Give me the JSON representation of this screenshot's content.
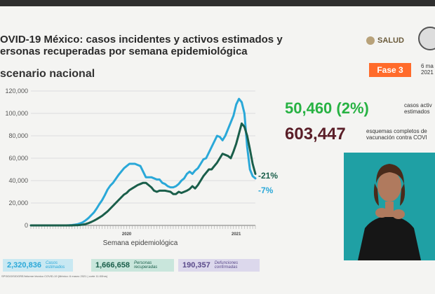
{
  "header": {
    "title_line1": "OVID-19 México: casos incidentes y activos estimados y",
    "title_line2": "ersonas recuperadas por semana epidemiológica",
    "subtitle": "scenario nacional",
    "brand": "SALUD",
    "phase": "Fase 3",
    "date_line1": "6 ma",
    "date_line2": "2021",
    "colors": {
      "phase_bg": "#ff6b2b",
      "active": "#27b243",
      "vaccine": "#5a1e28"
    }
  },
  "chart_data": {
    "type": "line",
    "xlabel": "Semana epidemiológica",
    "ylabel": "",
    "ylim": [
      0,
      120000
    ],
    "y_ticks": [
      "0",
      "20,000",
      "40,000",
      "60,000",
      "80,000",
      "100,000",
      "120,000"
    ],
    "year_labels": [
      "2020",
      "2021"
    ],
    "grid": true,
    "series": [
      {
        "name": "casos estimados",
        "color": "#2aa8d8",
        "values": [
          0,
          0,
          0,
          0,
          0,
          0,
          0,
          0,
          0,
          0,
          0,
          0,
          0,
          0,
          100,
          300,
          600,
          1000,
          1800,
          2800,
          4500,
          6500,
          9000,
          11500,
          15000,
          19000,
          22500,
          27000,
          32000,
          35500,
          38000,
          41500,
          45000,
          48000,
          51000,
          53000,
          55000,
          55000,
          55000,
          54000,
          53000,
          48000,
          43000,
          43000,
          43000,
          42000,
          41000,
          41000,
          38000,
          37000,
          35000,
          34000,
          34000,
          35000,
          37000,
          40000,
          42000,
          46000,
          48000,
          46000,
          49000,
          51000,
          55000,
          59000,
          60000,
          65000,
          70000,
          75000,
          80000,
          79000,
          76000,
          80000,
          86000,
          92000,
          98000,
          108000,
          113000,
          110000,
          100000,
          70000,
          50000,
          44000,
          42000
        ]
      },
      {
        "name": "personas recuperadas",
        "color": "#1a5e4a",
        "values": [
          0,
          0,
          0,
          0,
          0,
          0,
          0,
          0,
          0,
          0,
          0,
          0,
          0,
          0,
          0,
          0,
          100,
          200,
          400,
          700,
          1200,
          2000,
          3000,
          4200,
          5500,
          7000,
          8500,
          10500,
          12500,
          15000,
          17500,
          20000,
          22500,
          25000,
          27500,
          29000,
          31500,
          33000,
          34500,
          36000,
          37000,
          38000,
          38000,
          36000,
          34000,
          31000,
          30000,
          31000,
          31000,
          31000,
          30500,
          30000,
          28000,
          28000,
          30000,
          29000,
          30000,
          31000,
          32500,
          35000,
          33000,
          36000,
          40000,
          44000,
          47000,
          50000,
          50000,
          53000,
          56000,
          60000,
          64000,
          63000,
          62000,
          60000,
          66000,
          73000,
          82000,
          91000,
          88000,
          80000,
          68000,
          55000,
          46000
        ]
      }
    ],
    "annotations": [
      {
        "text": "-21%",
        "color": "#1a5e4a"
      },
      {
        "text": "-7%",
        "color": "#2aa8d8"
      }
    ]
  },
  "stats": {
    "active_value": "50,460 (2%)",
    "active_label_1": "casos activ",
    "active_label_2": "estimados",
    "vaccine_value": "603,447",
    "vaccine_label_1": "esquemas completos de",
    "vaccine_label_2": "vacunación contra COVI"
  },
  "boxes": [
    {
      "value": "2,320,836",
      "label_1": "Casos",
      "label_2": "estimados",
      "color": "#2aa8d8",
      "bg": "#c8e8f2"
    },
    {
      "value": "1,666,658",
      "label_1": "Personas",
      "label_2": "recuperadas",
      "color": "#1a5e4a",
      "bg": "#c9e6dc"
    },
    {
      "value": "190,357",
      "label_1": "Defunciones",
      "label_2": "confirmadas",
      "color": "#5a4a8a",
      "bg": "#dcd8ec"
    }
  ],
  "footnote": "SPS/DGIS/DGRE/Informe técnico COVID-19 (México: 6 marzo 2021 | corte 11:00hrs)"
}
